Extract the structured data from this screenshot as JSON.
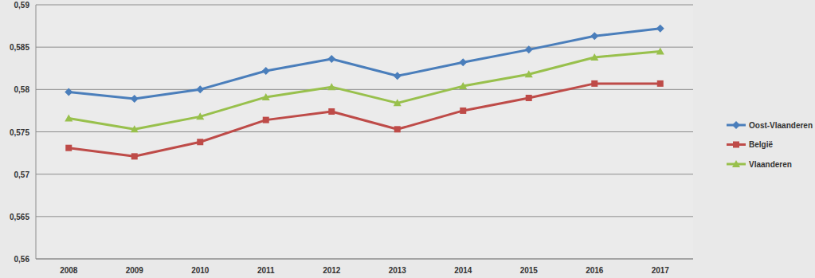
{
  "chart_data": {
    "type": "line",
    "categories": [
      "2008",
      "2009",
      "2010",
      "2011",
      "2012",
      "2013",
      "2014",
      "2015",
      "2016",
      "2017"
    ],
    "series": [
      {
        "name": "Oost-Vlaanderen",
        "color": "#4a7ebb",
        "marker": "diamond",
        "values": [
          0.5797,
          0.5789,
          0.58,
          0.5822,
          0.5836,
          0.5816,
          0.5832,
          0.5847,
          0.5863,
          0.5872
        ]
      },
      {
        "name": "België",
        "color": "#be4b48",
        "marker": "square",
        "values": [
          0.5731,
          0.5721,
          0.5738,
          0.5764,
          0.5774,
          0.5753,
          0.5775,
          0.579,
          0.5807,
          0.5807
        ]
      },
      {
        "name": "Vlaanderen",
        "color": "#98c04c",
        "marker": "triangle",
        "values": [
          0.5766,
          0.5753,
          0.5768,
          0.5791,
          0.5803,
          0.5784,
          0.5804,
          0.5818,
          0.5838,
          0.5845
        ]
      }
    ],
    "ylim": [
      0.56,
      0.59
    ],
    "yticks": [
      {
        "value": 0.56,
        "label": "0,56"
      },
      {
        "value": 0.565,
        "label": "0,565"
      },
      {
        "value": 0.57,
        "label": "0,57"
      },
      {
        "value": 0.575,
        "label": "0,575"
      },
      {
        "value": 0.58,
        "label": "0,58"
      },
      {
        "value": 0.585,
        "label": "0,585"
      },
      {
        "value": 0.59,
        "label": "0,59"
      }
    ],
    "grid": true,
    "legend": "right"
  }
}
